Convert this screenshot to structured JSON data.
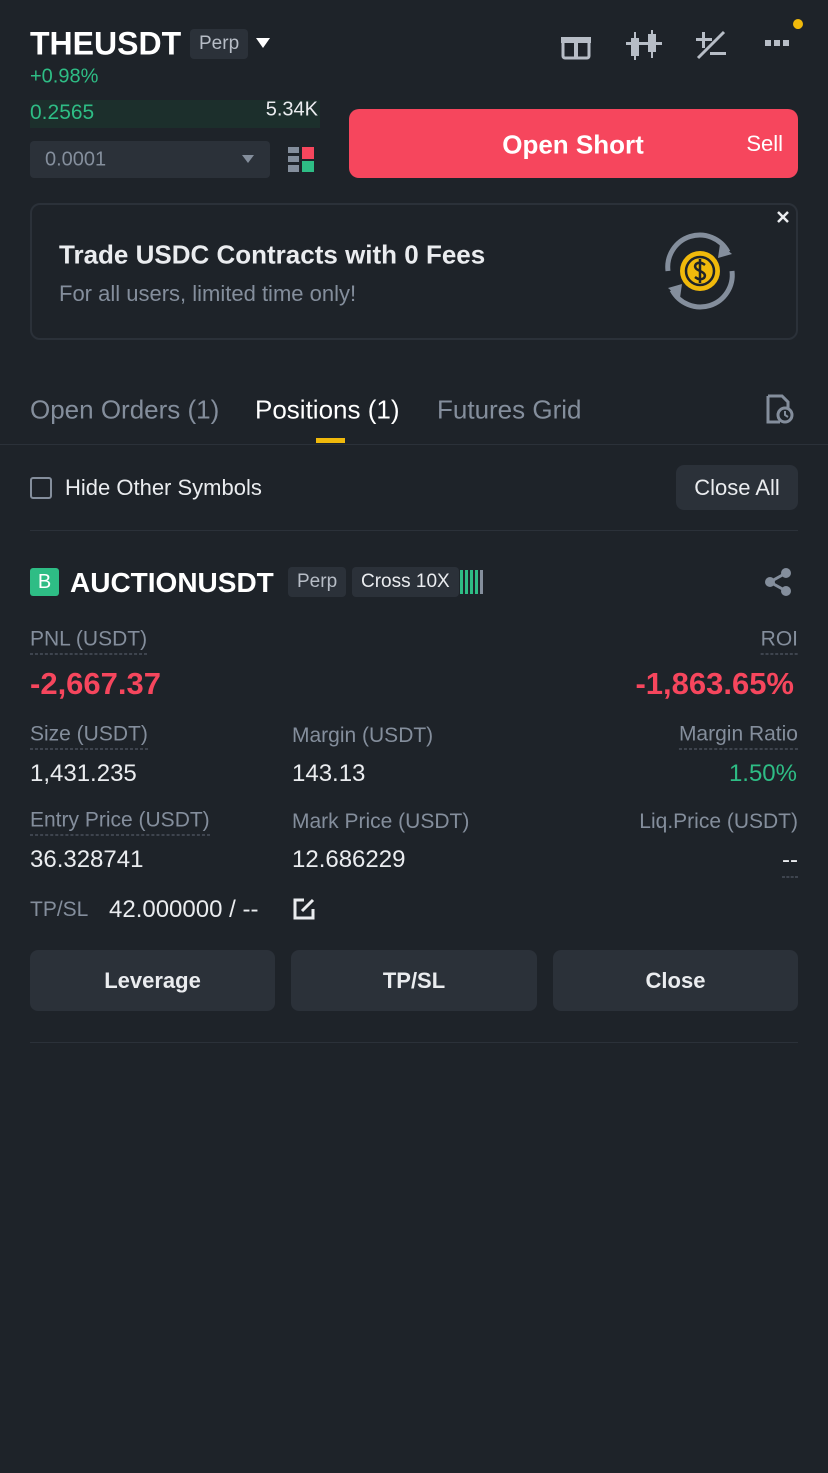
{
  "header": {
    "symbol": "THEUSDT",
    "contract": "Perp",
    "change": "+0.98%"
  },
  "orderbook": {
    "price": "0.2565",
    "quantity": "5.34K",
    "precision": "0.0001"
  },
  "action": {
    "label": "Open Short",
    "side": "Sell"
  },
  "banner": {
    "title": "Trade USDC Contracts with 0 Fees",
    "subtitle": "For all users, limited time only!"
  },
  "tabs": [
    "Open Orders (1)",
    "Positions (1)",
    "Futures Grid"
  ],
  "filter": {
    "label": "Hide Other Symbols",
    "button": "Close All"
  },
  "position": {
    "side": "B",
    "symbol": "AUCTIONUSDT",
    "contract": "Perp",
    "mode": "Cross 10X",
    "pnl": {
      "label": "PNL (USDT)",
      "value": "-2,667.37"
    },
    "roi": {
      "label": "ROI",
      "value": "-1,863.65%"
    },
    "size": {
      "label": "Size (USDT)",
      "value": "1,431.235"
    },
    "margin": {
      "label": "Margin (USDT)",
      "value": "143.13"
    },
    "margin_ratio": {
      "label": "Margin Ratio",
      "value": "1.50%"
    },
    "entry_price": {
      "label": "Entry Price (USDT)",
      "value": "36.328741"
    },
    "mark_price": {
      "label": "Mark Price (USDT)",
      "value": "12.686229"
    },
    "liq_price": {
      "label": "Liq.Price (USDT)",
      "value": "--"
    },
    "tpsl": {
      "label": "TP/SL",
      "value": "42.000000 / --"
    },
    "buttons": [
      "Leverage",
      "TP/SL",
      "Close"
    ]
  }
}
